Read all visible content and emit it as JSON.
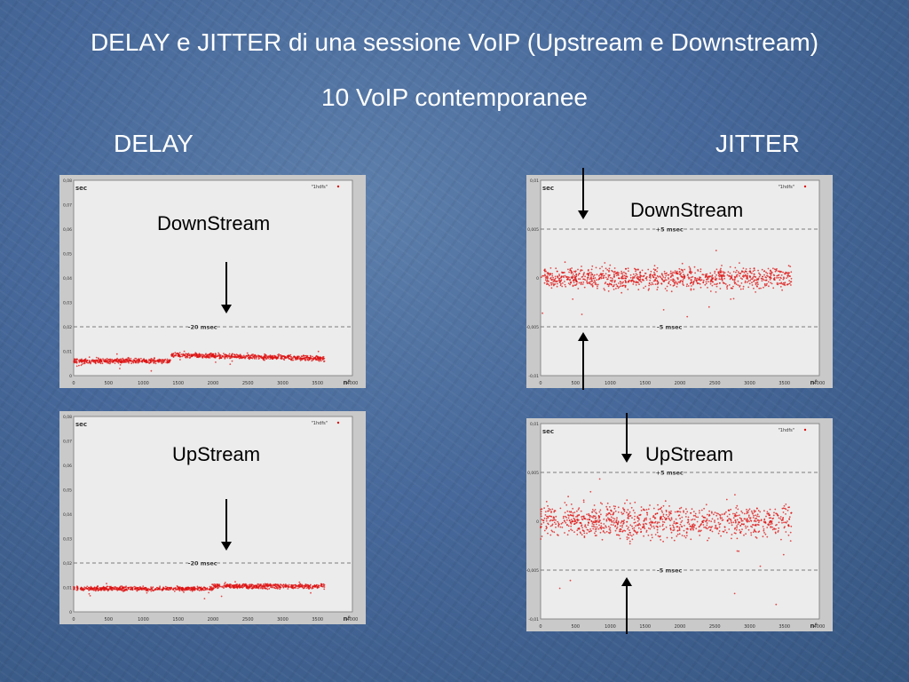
{
  "slide": {
    "title": "DELAY e JITTER di una sessione VoIP (Upstream e Downstream)",
    "subtitle": "10 VoIP contemporanee",
    "left_heading": "DELAY",
    "right_heading": "JITTER"
  },
  "colors": {
    "points": "#dd1111",
    "plot_bg": "#ececec",
    "panel_bg": "#c9c9c9"
  },
  "chart_data": [
    {
      "id": "delay-down",
      "type": "scatter",
      "label": "DownStream",
      "ylabel": "sec",
      "xlabel": "n°",
      "legend": "\"1hdfs\"",
      "xlim": [
        0,
        4000
      ],
      "ylim": [
        0,
        0.08
      ],
      "xticks": [
        "0",
        "500",
        "1000",
        "1500",
        "2000",
        "2500",
        "3000",
        "3500",
        "4000"
      ],
      "yticks": [
        "0",
        "0,01",
        "0,02",
        "0,03",
        "0,04",
        "0,05",
        "0,06",
        "0,07",
        "0,08"
      ],
      "reference_lines": [
        {
          "y": 0.02,
          "label": "-20 msec"
        }
      ],
      "series_segments": [
        {
          "x_start": 0,
          "x_end": 1400,
          "y_center": 0.006,
          "spread": 0.0015
        },
        {
          "x_start": 1400,
          "x_end": 3600,
          "y_center": 0.0085,
          "y_end": 0.007,
          "spread": 0.0015
        }
      ]
    },
    {
      "id": "delay-up",
      "type": "scatter",
      "label": "UpStream",
      "ylabel": "sec",
      "xlabel": "n°",
      "legend": "\"1hdfs\"",
      "xlim": [
        0,
        4000
      ],
      "ylim": [
        0,
        0.08
      ],
      "xticks": [
        "0",
        "500",
        "1000",
        "1500",
        "2000",
        "2500",
        "3000",
        "3500",
        "4000"
      ],
      "yticks": [
        "0",
        "0,01",
        "0,02",
        "0,03",
        "0,04",
        "0,05",
        "0,06",
        "0,07",
        "0,08"
      ],
      "reference_lines": [
        {
          "y": 0.02,
          "label": "-20 msec"
        }
      ],
      "series_segments": [
        {
          "x_start": 0,
          "x_end": 2000,
          "y_center": 0.0095,
          "spread": 0.0012
        },
        {
          "x_start": 2000,
          "x_end": 3600,
          "y_center": 0.0105,
          "spread": 0.0015
        }
      ]
    },
    {
      "id": "jitter-down",
      "type": "scatter",
      "label": "DownStream",
      "ylabel": "sec",
      "xlabel": "n°",
      "legend": "\"1hdfs\"",
      "xlim": [
        0,
        4000
      ],
      "ylim": [
        -0.01,
        0.01
      ],
      "xticks": [
        "0",
        "500",
        "1000",
        "1500",
        "2000",
        "2500",
        "3000",
        "3500",
        "4000"
      ],
      "yticks": [
        "-0,01",
        "-0,005",
        "0",
        "0,005",
        "0,01"
      ],
      "reference_lines": [
        {
          "y": 0.005,
          "label": "+5 msec"
        },
        {
          "y": -0.005,
          "label": "-5 msec"
        }
      ],
      "series_segments": [
        {
          "x_start": 0,
          "x_end": 3600,
          "y_center": 0,
          "spread": 0.0016
        }
      ]
    },
    {
      "id": "jitter-up",
      "type": "scatter",
      "label": "UpStream",
      "ylabel": "sec",
      "xlabel": "n°",
      "legend": "\"1hdfs\"",
      "xlim": [
        0,
        4000
      ],
      "ylim": [
        -0.01,
        0.01
      ],
      "xticks": [
        "0",
        "500",
        "1000",
        "1500",
        "2000",
        "2500",
        "3000",
        "3500",
        "4000"
      ],
      "yticks": [
        "-0,01",
        "-0,005",
        "0",
        "0,005",
        "0,01"
      ],
      "reference_lines": [
        {
          "y": 0.005,
          "label": "+5 msec"
        },
        {
          "y": -0.005,
          "label": "-5 msec"
        }
      ],
      "series_segments": [
        {
          "x_start": 0,
          "x_end": 3600,
          "y_center": 0,
          "spread": 0.0025
        }
      ]
    }
  ]
}
